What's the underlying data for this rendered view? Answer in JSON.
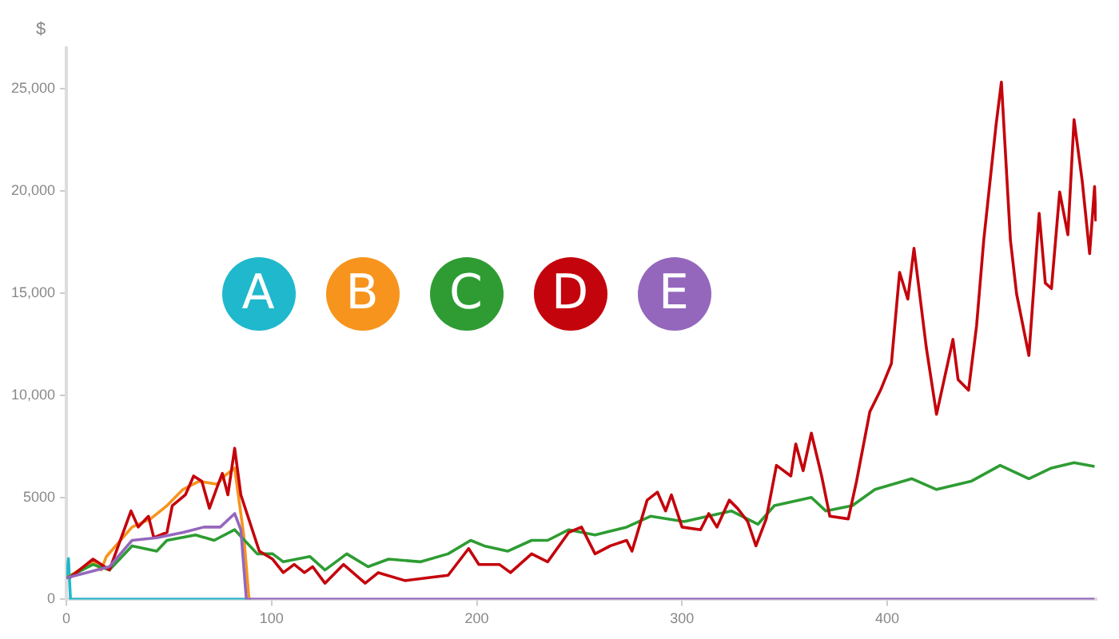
{
  "chart_data": {
    "type": "line",
    "ylabel": "$",
    "legend": "top left",
    "marker": "none",
    "grid": false,
    "xlim": [
      0,
      502
    ],
    "xticks": [
      0,
      100,
      200,
      300,
      400
    ],
    "ylim": [
      0,
      27000
    ],
    "yticks": [
      0,
      5000,
      {
        "value": 10000,
        "label": "10,000"
      },
      {
        "value": 15000,
        "label": "15,000"
      },
      {
        "value": 20000,
        "label": "20,000"
      },
      {
        "value": 25000,
        "label": "25,000"
      }
    ],
    "series": [
      {
        "name": "A",
        "color": "#1fb8cc",
        "x": [
          0,
          1,
          2,
          90
        ],
        "values": [
          1000,
          2000,
          0,
          0
        ]
      },
      {
        "name": "B",
        "color": "#f7941d",
        "x": [
          0,
          13,
          17,
          19.5,
          32,
          41,
          49,
          56.8,
          64.5,
          73.5,
          77,
          82,
          86.4,
          89
        ],
        "values": [
          1050,
          1840,
          1440,
          2100,
          3540,
          3940,
          4590,
          5380,
          5780,
          5640,
          6040,
          6430,
          3150,
          0
        ]
      },
      {
        "name": "C",
        "color": "#2e9c33",
        "x": [
          0,
          13,
          21,
          32,
          44,
          49,
          63,
          72,
          82,
          93,
          100.5,
          105.7,
          118.6,
          126,
          136.6,
          147,
          157,
          172.7,
          186,
          197,
          203.6,
          215,
          226.7,
          234.5,
          244.8,
          257.6,
          273,
          284.6,
          301,
          324,
          337,
          345,
          363,
          370,
          383,
          394,
          412,
          424,
          440.8,
          455,
          469,
          480,
          491,
          501
        ],
        "values": [
          1050,
          1710,
          1440,
          2620,
          2360,
          2890,
          3150,
          2890,
          3410,
          2230,
          2230,
          1840,
          2100,
          1440,
          2230,
          1600,
          1970,
          1840,
          2230,
          2890,
          2620,
          2360,
          2890,
          2890,
          3410,
          3150,
          3540,
          4070,
          3810,
          4330,
          3680,
          4590,
          4990,
          4330,
          4590,
          5380,
          5910,
          5380,
          5780,
          6560,
          5910,
          6430,
          6690,
          6510
        ]
      },
      {
        "name": "D",
        "color": "#c4040c",
        "x": [
          1.4,
          13,
          21,
          31.5,
          35,
          40,
          42.6,
          49,
          51.6,
          58,
          62,
          66,
          69.7,
          73.5,
          76,
          78.7,
          82,
          85,
          94,
          100.5,
          105.7,
          111,
          116,
          120,
          126,
          135,
          145.6,
          152,
          165,
          175.6,
          186,
          196,
          201,
          211,
          216.4,
          226.7,
          234.5,
          244.8,
          251,
          257.6,
          265,
          273,
          275.6,
          283,
          288,
          292,
          294.8,
          300,
          309,
          313,
          317,
          323,
          327,
          332,
          336,
          341,
          346,
          353,
          355.4,
          359,
          363,
          368,
          372,
          381,
          385,
          391.5,
          396.7,
          402,
          406,
          410,
          413,
          419,
          424,
          432,
          434.5,
          439.6,
          443.5,
          447,
          453,
          455.6,
          460,
          463,
          469,
          474,
          477,
          480,
          484,
          488,
          491,
          495,
          498.6,
          501,
          501.6
        ],
        "values": [
          1050,
          1970,
          1440,
          4330,
          3540,
          4070,
          3020,
          3280,
          4590,
          5120,
          6040,
          5780,
          4460,
          5510,
          6170,
          5120,
          7400,
          5120,
          2360,
          1970,
          1310,
          1710,
          1310,
          1600,
          790,
          1710,
          790,
          1310,
          920,
          1050,
          1180,
          2490,
          1710,
          1710,
          1310,
          2230,
          1840,
          3280,
          3540,
          2230,
          2620,
          2890,
          2360,
          4860,
          5250,
          4330,
          5120,
          3540,
          3410,
          4200,
          3540,
          4860,
          4460,
          3810,
          2620,
          3940,
          6560,
          6040,
          7610,
          6300,
          8140,
          6040,
          4070,
          3940,
          5780,
          9190,
          10240,
          11550,
          16010,
          14700,
          17190,
          12340,
          9060,
          12730,
          10760,
          10240,
          13390,
          17590,
          23230,
          25330,
          17590,
          14960,
          11940,
          18900,
          15490,
          15220,
          19950,
          17850,
          23490,
          20470,
          16930,
          20210,
          18510
        ]
      },
      {
        "name": "E",
        "color": "#9467bd",
        "x": [
          0,
          21,
          32,
          44,
          57,
          67,
          75,
          82,
          85,
          87.7,
          501
        ],
        "values": [
          1050,
          1600,
          2890,
          3020,
          3280,
          3540,
          3540,
          4200,
          3410,
          0,
          0
        ]
      }
    ]
  }
}
